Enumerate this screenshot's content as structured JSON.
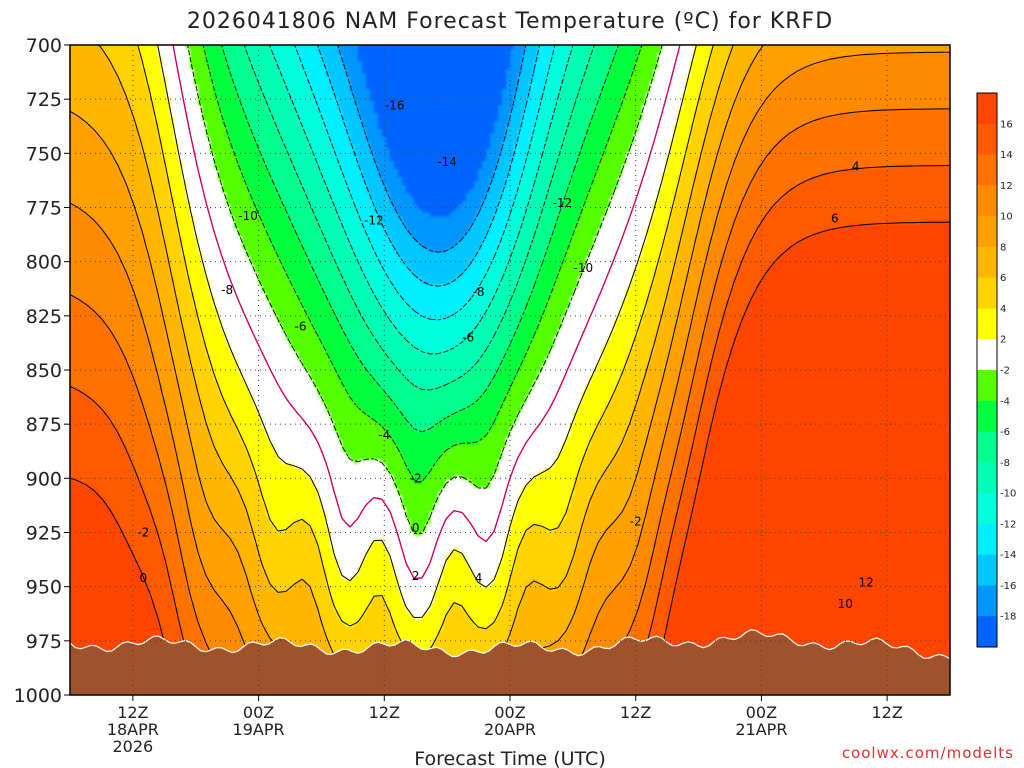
{
  "chart_data": {
    "type": "heatmap",
    "title": "2026041806 NAM Forecast Temperature (ºC) for KRFD",
    "xlabel": "Forecast Time (UTC)",
    "ylabel": "",
    "units": "ºC",
    "y_axis": {
      "ticks": [
        700,
        725,
        750,
        775,
        800,
        825,
        850,
        875,
        900,
        925,
        950,
        975,
        1000
      ],
      "ylim": [
        700,
        1000
      ],
      "direction": "pressure increasing downward"
    },
    "x_axis": {
      "ticks": [
        {
          "hours": 6,
          "lines": [
            "12Z",
            "18APR",
            "2026"
          ]
        },
        {
          "hours": 18,
          "lines": [
            "00Z",
            "19APR"
          ]
        },
        {
          "hours": 30,
          "lines": [
            "12Z"
          ]
        },
        {
          "hours": 42,
          "lines": [
            "00Z",
            "20APR"
          ]
        },
        {
          "hours": 54,
          "lines": [
            "12Z"
          ]
        },
        {
          "hours": 66,
          "lines": [
            "00Z",
            "21APR"
          ]
        },
        {
          "hours": 78,
          "lines": [
            "12Z"
          ]
        }
      ],
      "xlim": [
        0,
        84
      ]
    },
    "grid": true,
    "colorbar": {
      "position": "right",
      "ticks": [
        16,
        14,
        12,
        10,
        8,
        6,
        4,
        2,
        -2,
        -4,
        -6,
        -8,
        -10,
        -12,
        -14,
        -16,
        -18
      ],
      "bins": [
        {
          "low": 16,
          "high": 18,
          "color": "#ff4500"
        },
        {
          "low": 14,
          "high": 16,
          "color": "#ff5a00"
        },
        {
          "low": 12,
          "high": 14,
          "color": "#ff7200"
        },
        {
          "low": 10,
          "high": 12,
          "color": "#ff8a00"
        },
        {
          "low": 8,
          "high": 10,
          "color": "#ffa000"
        },
        {
          "low": 6,
          "high": 8,
          "color": "#ffb600"
        },
        {
          "low": 4,
          "high": 6,
          "color": "#ffd200"
        },
        {
          "low": 2,
          "high": 4,
          "color": "#ffff00"
        },
        {
          "low": -2,
          "high": 2,
          "color": "#ffffff"
        },
        {
          "low": -4,
          "high": -2,
          "color": "#55ff00"
        },
        {
          "low": -6,
          "high": -4,
          "color": "#00ff3c"
        },
        {
          "low": -8,
          "high": -6,
          "color": "#00ff8c"
        },
        {
          "low": -10,
          "high": -8,
          "color": "#00ffb4"
        },
        {
          "low": -12,
          "high": -10,
          "color": "#00ffdc"
        },
        {
          "low": -14,
          "high": -12,
          "color": "#00f0ff"
        },
        {
          "low": -16,
          "high": -14,
          "color": "#00c8ff"
        },
        {
          "low": -18,
          "high": -16,
          "color": "#0096ff"
        },
        {
          "low": -20,
          "high": -18,
          "color": "#0064ff"
        }
      ]
    },
    "terrain_color": "#a0522d",
    "freezing_line_color": "#cc0066",
    "contour_labels": [
      {
        "text": "-16",
        "x": 31,
        "p": 728
      },
      {
        "text": "-14",
        "x": 36,
        "p": 754
      },
      {
        "text": "-12",
        "x": 29,
        "p": 781
      },
      {
        "text": "-12",
        "x": 47,
        "p": 773
      },
      {
        "text": "-10",
        "x": 17,
        "p": 779
      },
      {
        "text": "-10",
        "x": 49,
        "p": 803
      },
      {
        "text": "-8",
        "x": 15,
        "p": 813
      },
      {
        "text": "-8",
        "x": 39,
        "p": 814
      },
      {
        "text": "-6",
        "x": 22,
        "p": 830
      },
      {
        "text": "-6",
        "x": 38,
        "p": 835
      },
      {
        "text": "-4",
        "x": 30,
        "p": 880
      },
      {
        "text": "-2",
        "x": 33,
        "p": 900
      },
      {
        "text": "-2",
        "x": 7,
        "p": 925
      },
      {
        "text": "-2",
        "x": 54,
        "p": 920
      },
      {
        "text": "0",
        "x": 33,
        "p": 923
      },
      {
        "text": "0",
        "x": 7,
        "p": 946
      },
      {
        "text": "2",
        "x": 33,
        "p": 945
      },
      {
        "text": "4",
        "x": 39,
        "p": 946
      },
      {
        "text": "4",
        "x": 75,
        "p": 756
      },
      {
        "text": "6",
        "x": 73,
        "p": 780
      },
      {
        "text": "10",
        "x": 74,
        "p": 958
      },
      {
        "text": "12",
        "x": 76,
        "p": 948
      }
    ],
    "contour_levels": [
      -16,
      -14,
      -12,
      -10,
      -8,
      -6,
      -4,
      -2,
      0,
      2,
      4,
      6,
      8,
      10,
      12,
      14,
      16
    ]
  },
  "credit": "coolwx.com/modelts"
}
